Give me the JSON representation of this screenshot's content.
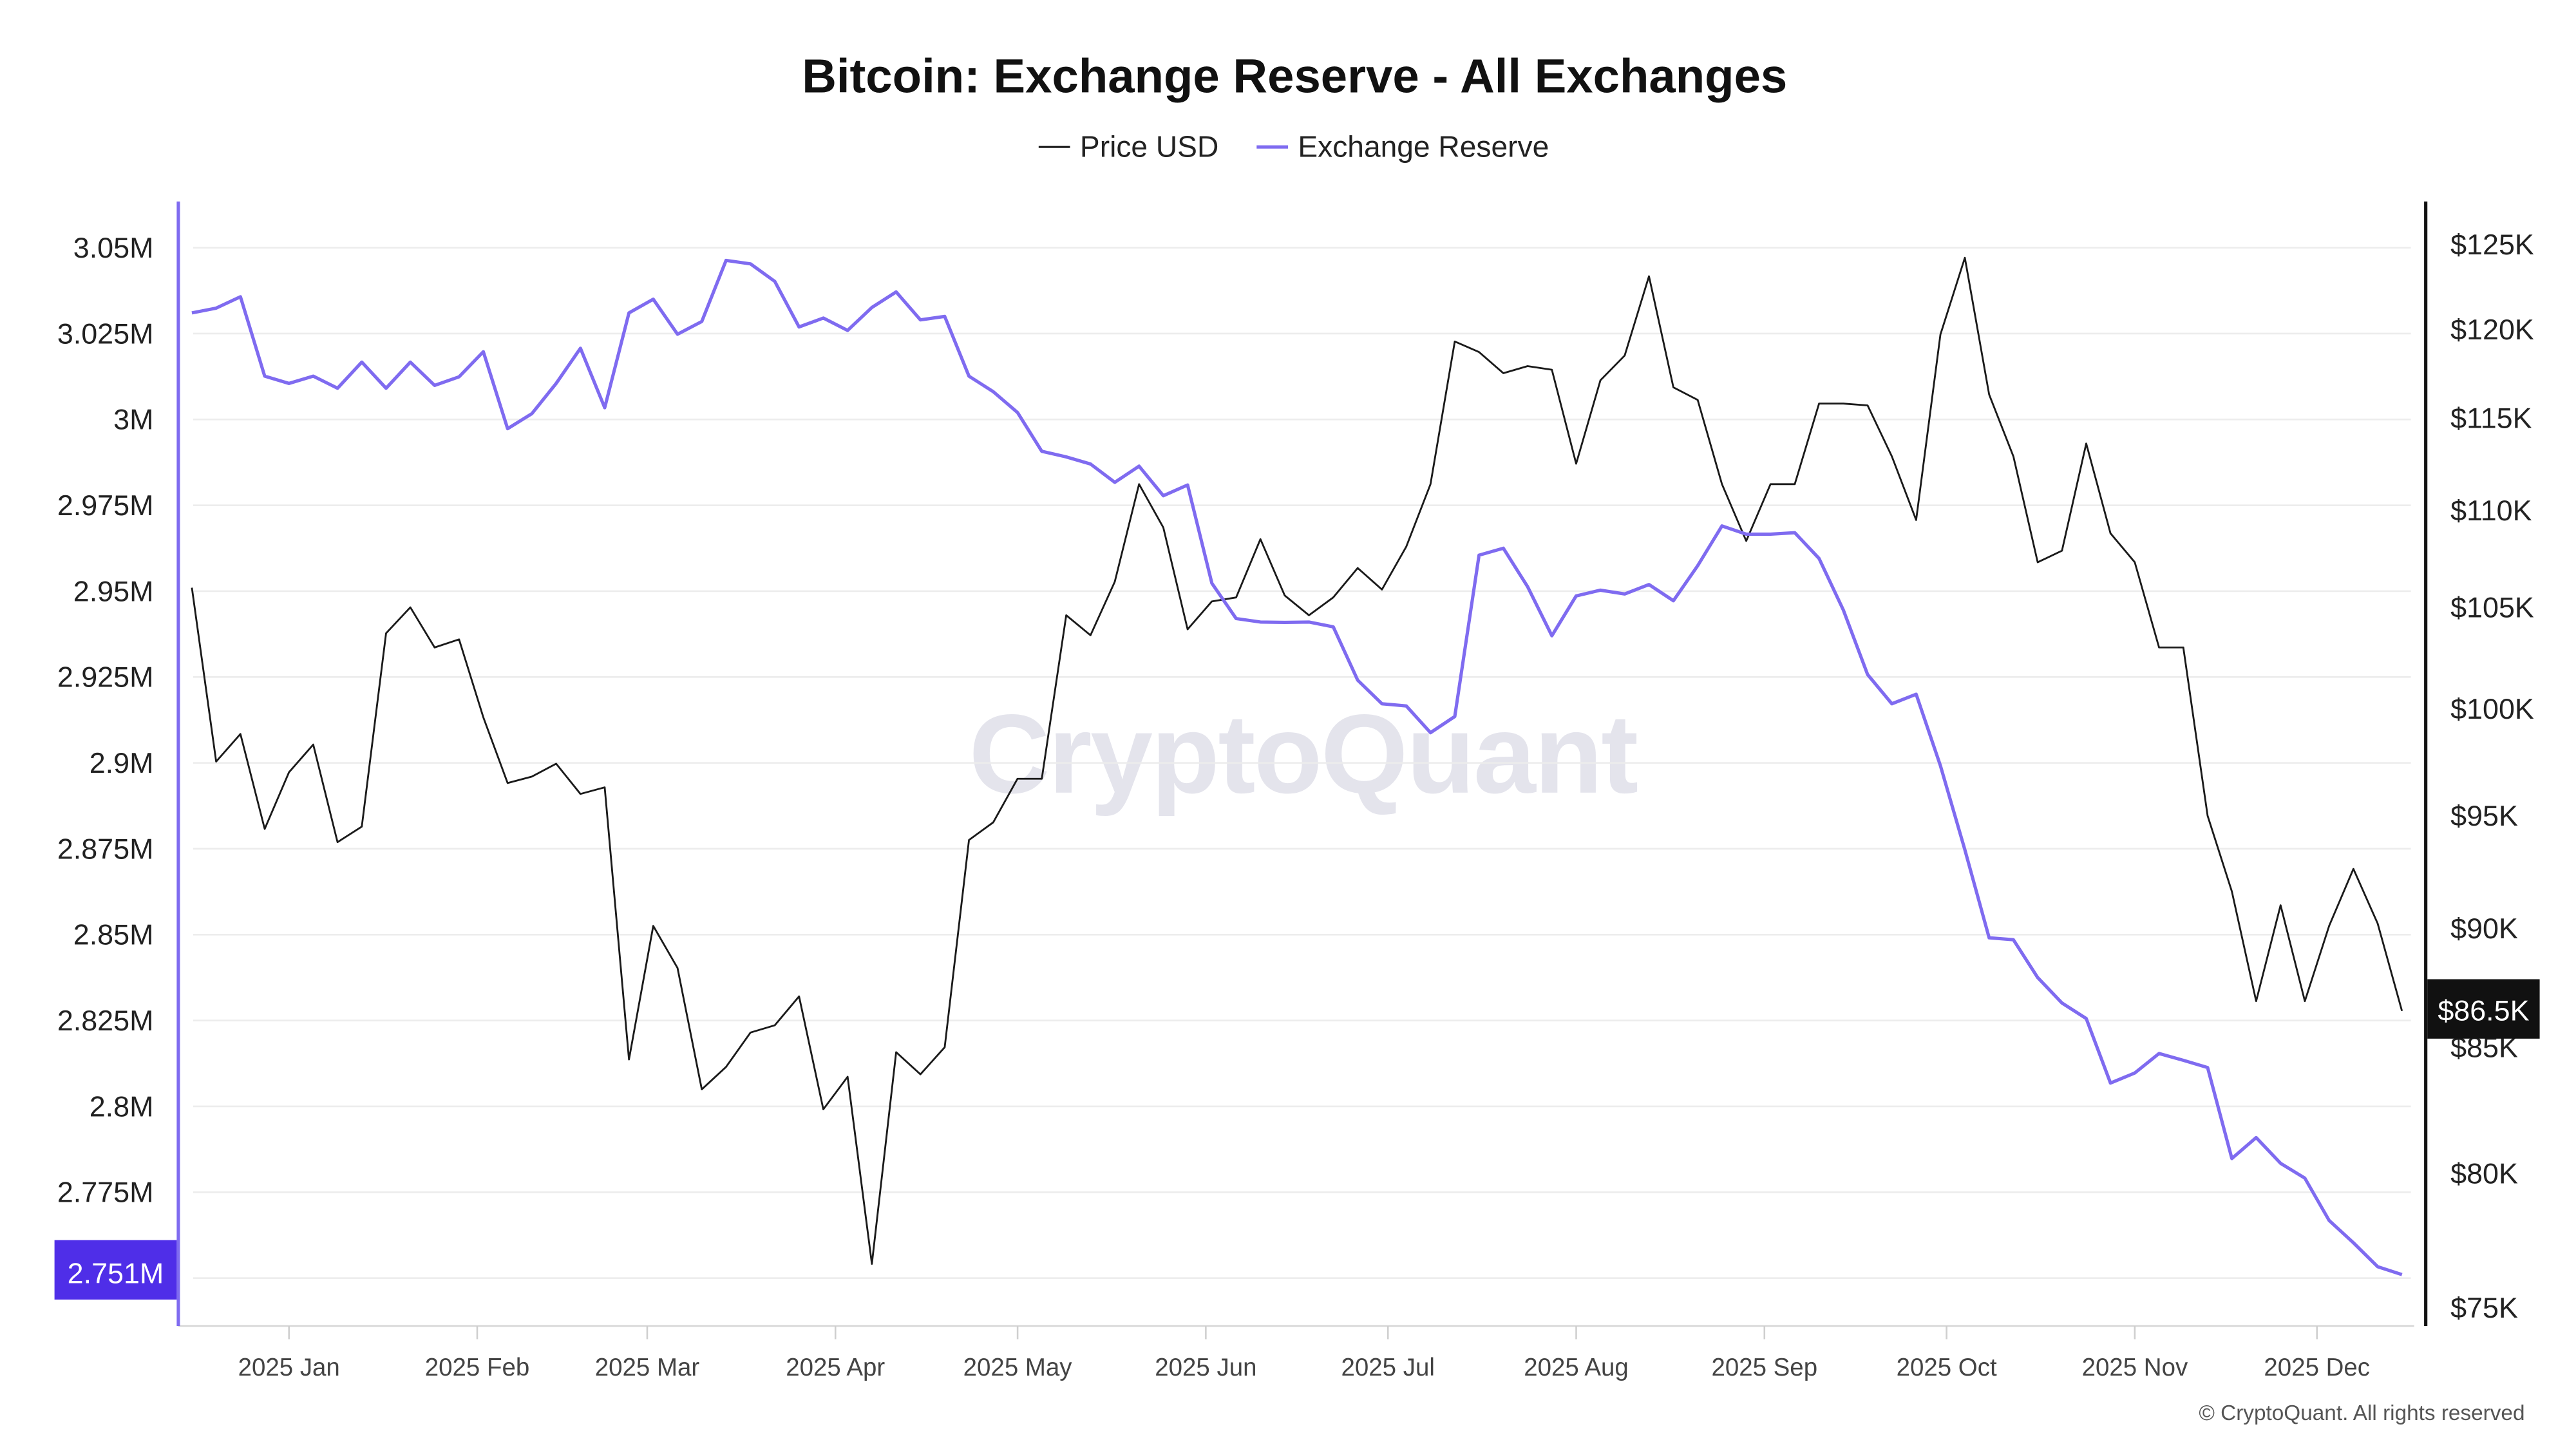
{
  "chart_data": {
    "type": "line",
    "title": "Bitcoin: Exchange Reserve - All Exchanges",
    "legend_placement": "top-center",
    "grid": true,
    "x": [
      "2024-12-16",
      "2024-12-20",
      "2024-12-24",
      "2024-12-28",
      "2025-01-01",
      "2025-01-05",
      "2025-01-09",
      "2025-01-13",
      "2025-01-17",
      "2025-01-21",
      "2025-01-25",
      "2025-01-29",
      "2025-02-02",
      "2025-02-06",
      "2025-02-10",
      "2025-02-14",
      "2025-02-18",
      "2025-02-22",
      "2025-02-26",
      "2025-03-02",
      "2025-03-06",
      "2025-03-10",
      "2025-03-14",
      "2025-03-18",
      "2025-03-22",
      "2025-03-26",
      "2025-03-30",
      "2025-04-03",
      "2025-04-07",
      "2025-04-11",
      "2025-04-15",
      "2025-04-19",
      "2025-04-23",
      "2025-04-27",
      "2025-05-01",
      "2025-05-05",
      "2025-05-09",
      "2025-05-13",
      "2025-05-17",
      "2025-05-21",
      "2025-05-25",
      "2025-05-29",
      "2025-06-02",
      "2025-06-06",
      "2025-06-10",
      "2025-06-14",
      "2025-06-18",
      "2025-06-22",
      "2025-06-26",
      "2025-06-30",
      "2025-07-04",
      "2025-07-08",
      "2025-07-12",
      "2025-07-16",
      "2025-07-20",
      "2025-07-24",
      "2025-07-28",
      "2025-08-01",
      "2025-08-05",
      "2025-08-09",
      "2025-08-13",
      "2025-08-17",
      "2025-08-21",
      "2025-08-25",
      "2025-08-29",
      "2025-09-02",
      "2025-09-06",
      "2025-09-10",
      "2025-09-14",
      "2025-09-18",
      "2025-09-22",
      "2025-09-26",
      "2025-09-30",
      "2025-10-04",
      "2025-10-08",
      "2025-10-12",
      "2025-10-16",
      "2025-10-20",
      "2025-10-24",
      "2025-10-28",
      "2025-11-01",
      "2025-11-05",
      "2025-11-09",
      "2025-11-13",
      "2025-11-17",
      "2025-11-21",
      "2025-11-25",
      "2025-11-29",
      "2025-12-03",
      "2025-12-07",
      "2025-12-11",
      "2025-12-15"
    ],
    "series": [
      {
        "name": "Price USD",
        "axis": "right",
        "color": "#1a1a1a",
        "values": [
          106000,
          97500,
          98800,
          94400,
          97000,
          98300,
          93800,
          94500,
          103700,
          105000,
          103000,
          103400,
          99600,
          96500,
          96800,
          97400,
          96000,
          96300,
          84500,
          90100,
          88300,
          83300,
          84200,
          85600,
          85900,
          87100,
          82500,
          83800,
          76600,
          84800,
          83900,
          85000,
          93900,
          94700,
          96700,
          96700,
          104600,
          103600,
          106300,
          111400,
          109100,
          103900,
          105300,
          105500,
          108500,
          105600,
          104600,
          105500,
          107000,
          105900,
          108100,
          111400,
          119300,
          118700,
          117500,
          117900,
          117700,
          112500,
          117100,
          118500,
          123100,
          116700,
          116000,
          111400,
          108400,
          111400,
          111400,
          115800,
          115800,
          115700,
          112900,
          109500,
          119700,
          124200,
          116300,
          112900,
          107300,
          107900,
          113600,
          108800,
          107300,
          103000,
          103000,
          95000,
          91600,
          86900,
          91000,
          86900,
          90100,
          92600,
          90200,
          86500
        ]
      },
      {
        "name": "Exchange Reserve",
        "axis": "left",
        "color": "#7F6BF0",
        "values": [
          3031000,
          3032400,
          3035700,
          3012600,
          3010500,
          3012600,
          3009100,
          3016700,
          3009100,
          3016700,
          3009900,
          3012400,
          3019700,
          2997300,
          3001700,
          3010500,
          3020700,
          3003400,
          3031000,
          3035000,
          3024800,
          3028500,
          3046300,
          3045300,
          3040200,
          3026900,
          3029500,
          3025900,
          3032600,
          3037100,
          3029000,
          3030000,
          3012600,
          3008100,
          3002000,
          2990700,
          2989100,
          2987000,
          2981700,
          2986400,
          2977800,
          2980900,
          2952300,
          2942000,
          2941000,
          2940900,
          2941000,
          2939600,
          2924100,
          2917200,
          2916600,
          2908800,
          2913500,
          2960500,
          2962500,
          2951300,
          2937000,
          2948600,
          2950300,
          2949200,
          2951900,
          2947200,
          2957400,
          2969000,
          2966600,
          2966600,
          2967000,
          2959500,
          2944500,
          2925700,
          2917200,
          2920000,
          2899200,
          2874700,
          2849100,
          2848500,
          2837500,
          2830100,
          2825600,
          2806800,
          2809700,
          2815400,
          2813400,
          2811300,
          2784800,
          2790900,
          2783400,
          2779100,
          2766800,
          2760300,
          2753300,
          2751000
        ]
      }
    ],
    "y_left": {
      "ticks": [
        3050000,
        3025000,
        3000000,
        2975000,
        2950000,
        2925000,
        2900000,
        2875000,
        2850000,
        2825000,
        2800000,
        2775000
      ],
      "tick_labels": [
        "3.05M",
        "3.025M",
        "3M",
        "2.975M",
        "2.95M",
        "2.925M",
        "2.9M",
        "2.875M",
        "2.85M",
        "2.825M",
        "2.8M",
        "2.775M"
      ],
      "ylim": [
        2736000,
        3063000
      ],
      "scale": "linear",
      "color": "#7F6BF0",
      "last_value_label": "2.751M",
      "last_value_color": "#4F2EE8"
    },
    "y_right": {
      "ticks": [
        125000,
        120000,
        115000,
        110000,
        105000,
        100000,
        95000,
        90000,
        85000,
        80000,
        75000
      ],
      "tick_labels": [
        "$125K",
        "$120K",
        "$115K",
        "$110K",
        "$105K",
        "$100K",
        "$95K",
        "$90K",
        "$85K",
        "$80K",
        "$75K"
      ],
      "ylim": [
        74400,
        127600
      ],
      "scale": "log",
      "color": "#111111",
      "last_value_label": "$86.5K",
      "last_value_color": "#111111"
    },
    "x_ticks": [
      {
        "date": "2025-01-01",
        "label": "2025 Jan"
      },
      {
        "date": "2025-02-01",
        "label": "2025 Feb"
      },
      {
        "date": "2025-03-01",
        "label": "2025 Mar"
      },
      {
        "date": "2025-04-01",
        "label": "2025 Apr"
      },
      {
        "date": "2025-05-01",
        "label": "2025 May"
      },
      {
        "date": "2025-06-01",
        "label": "2025 Jun"
      },
      {
        "date": "2025-07-01",
        "label": "2025 Jul"
      },
      {
        "date": "2025-08-01",
        "label": "2025 Aug"
      },
      {
        "date": "2025-09-01",
        "label": "2025 Sep"
      },
      {
        "date": "2025-10-01",
        "label": "2025 Oct"
      },
      {
        "date": "2025-11-01",
        "label": "2025 Nov"
      },
      {
        "date": "2025-12-01",
        "label": "2025 Dec"
      }
    ]
  },
  "watermark": "CryptoQuant",
  "copyright": "© CryptoQuant. All rights reserved"
}
